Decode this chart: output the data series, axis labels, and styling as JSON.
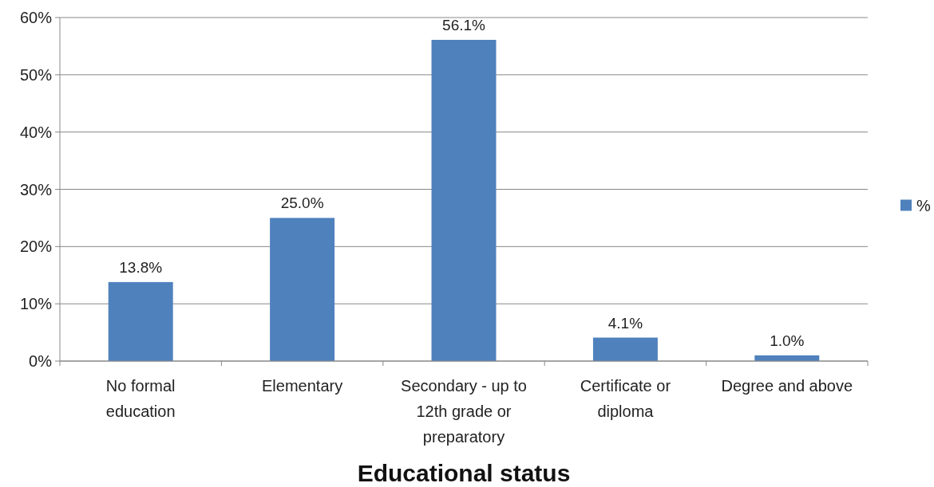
{
  "chart_data": {
    "type": "bar",
    "xlabel": "Educational status",
    "categories": [
      "No formal education",
      "Elementary",
      "Secondary - up to 12th grade or preparatory",
      "Certificate or diploma",
      "Degree and above"
    ],
    "series": [
      {
        "name": "%",
        "color": "#4f81bd",
        "values": [
          13.8,
          25.0,
          56.1,
          4.1,
          1.0
        ],
        "value_labels": [
          "13.8%",
          "25.0%",
          "56.1%",
          "4.1%",
          "1.0%"
        ]
      }
    ],
    "ylim": [
      0,
      60
    ],
    "yticks": [
      {
        "value": 0,
        "label": "0%"
      },
      {
        "value": 10,
        "label": "10%"
      },
      {
        "value": 20,
        "label": "20%"
      },
      {
        "value": 30,
        "label": "30%"
      },
      {
        "value": 40,
        "label": "40%"
      },
      {
        "value": 50,
        "label": "50%"
      },
      {
        "value": 60,
        "label": "60%"
      }
    ],
    "grid": "y",
    "legend": "right"
  }
}
